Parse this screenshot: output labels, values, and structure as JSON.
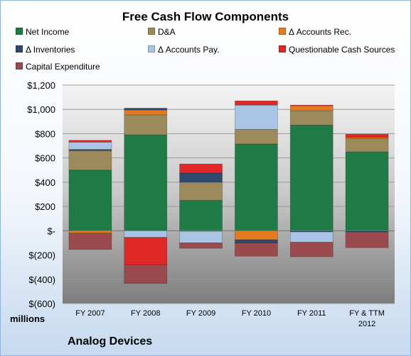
{
  "chart_data": {
    "type": "bar",
    "stacked": true,
    "title": "Free Cash Flow Components",
    "units_label": "millions",
    "company": "Analog Devices",
    "categories": [
      "FY 2007",
      "FY 2008",
      "FY 2009",
      "FY 2010",
      "FY 2011",
      "FY & TTM 2012"
    ],
    "ylim": [
      -600,
      1200
    ],
    "yticks": [
      {
        "value": 1200,
        "label": "$1,200"
      },
      {
        "value": 1000,
        "label": "$1,000"
      },
      {
        "value": 800,
        "label": "$800"
      },
      {
        "value": 600,
        "label": "$600"
      },
      {
        "value": 400,
        "label": "$400"
      },
      {
        "value": 200,
        "label": "$200"
      },
      {
        "value": 0,
        "label": "$-"
      },
      {
        "value": -200,
        "label": "$(200)"
      },
      {
        "value": -400,
        "label": "$(400)"
      },
      {
        "value": -600,
        "label": "$(600)"
      }
    ],
    "legend_position": "top",
    "series": [
      {
        "name": "Net Income",
        "color": "#1e7b45",
        "values": [
          500,
          790,
          250,
          715,
          870,
          650
        ]
      },
      {
        "name": "D&A",
        "color": "#9c8a5a",
        "values": [
          160,
          165,
          150,
          120,
          120,
          110
        ]
      },
      {
        "name": "Δ Accounts Rec.",
        "color": "#e57a1e",
        "values": [
          -20,
          40,
          -5,
          -75,
          40,
          10
        ]
      },
      {
        "name": "Δ Inventories",
        "color": "#2f4a6e",
        "values": [
          10,
          15,
          75,
          -25,
          -10,
          -10
        ]
      },
      {
        "name": "Δ Accounts Pay.",
        "color": "#a9c4e4",
        "values": [
          60,
          -55,
          -95,
          200,
          -85,
          0
        ]
      },
      {
        "name": "Questionable Cash Sources",
        "color": "#e02727",
        "values": [
          15,
          -225,
          75,
          35,
          5,
          25
        ]
      },
      {
        "name": "Capital Expenditure",
        "color": "#9b4a4e",
        "values": [
          -135,
          -155,
          -45,
          -110,
          -120,
          -130
        ]
      }
    ]
  }
}
